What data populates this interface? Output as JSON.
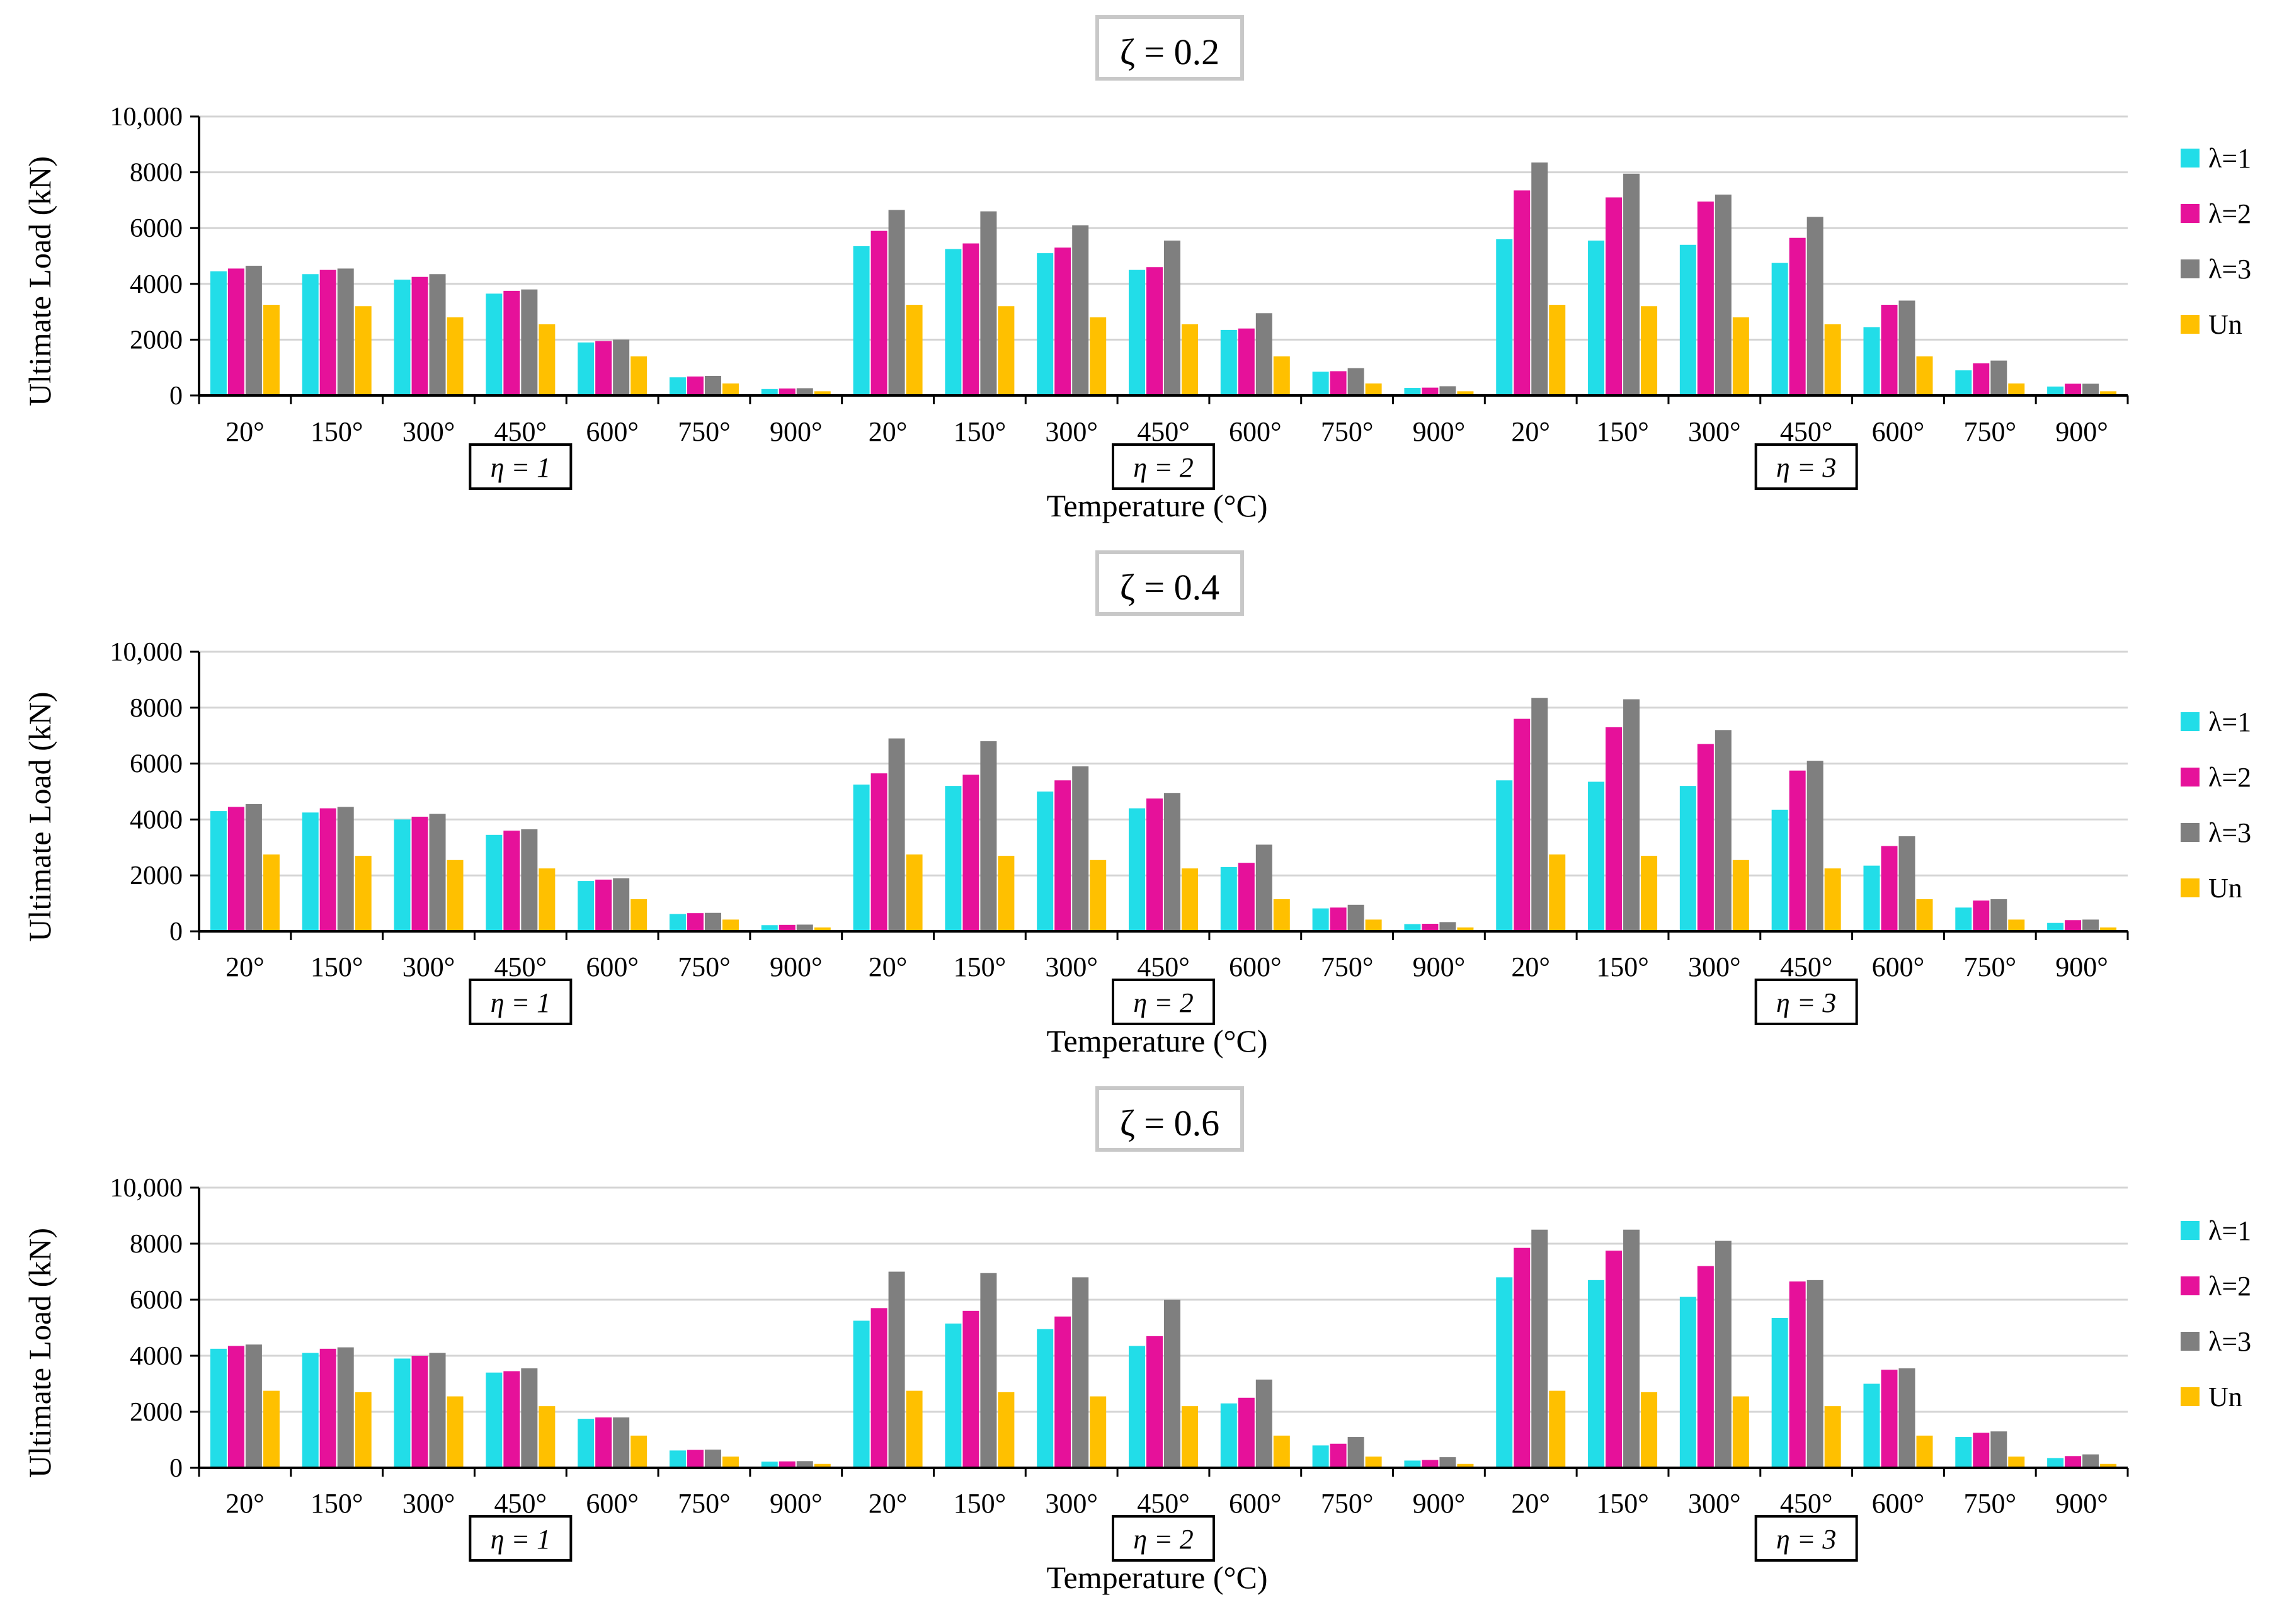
{
  "chart_data": [
    {
      "type": "bar",
      "title": "ζ = 0.2",
      "xlabel": "Temperature (°C)",
      "ylabel": "Ultimate Load (kN)",
      "ylim": [
        0,
        10000
      ],
      "yticks": [
        "0",
        "2000",
        "4000",
        "6000",
        "8000",
        "10,000"
      ],
      "grid": true,
      "legend_position": "right",
      "categories": [
        "20°",
        "150°",
        "300°",
        "450°",
        "600°",
        "750°",
        "900°",
        "20°",
        "150°",
        "300°",
        "450°",
        "600°",
        "750°",
        "900°",
        "20°",
        "150°",
        "300°",
        "450°",
        "600°",
        "750°",
        "900°"
      ],
      "group_labels": [
        "η = 1",
        "η = 2",
        "η = 3"
      ],
      "series": [
        {
          "name": "λ=1",
          "color": "#22DDE8",
          "values": [
            4450,
            4350,
            4150,
            3650,
            1900,
            650,
            230,
            5350,
            5250,
            5100,
            4500,
            2350,
            850,
            270,
            5600,
            5550,
            5400,
            4750,
            2450,
            900,
            320
          ]
        },
        {
          "name": "λ=2",
          "color": "#E6119A",
          "values": [
            4550,
            4500,
            4250,
            3750,
            1950,
            680,
            250,
            5900,
            5450,
            5300,
            4600,
            2400,
            870,
            280,
            7350,
            7100,
            6950,
            5650,
            3250,
            1150,
            420
          ]
        },
        {
          "name": "λ=3",
          "color": "#7F7F7F",
          "values": [
            4650,
            4550,
            4350,
            3800,
            2000,
            700,
            260,
            6650,
            6600,
            6100,
            5550,
            2950,
            980,
            330,
            8350,
            7950,
            7200,
            6400,
            3400,
            1250,
            420
          ]
        },
        {
          "name": "Un",
          "color": "#FFC000",
          "values": [
            3250,
            3200,
            2800,
            2550,
            1400,
            430,
            150,
            3250,
            3200,
            2800,
            2550,
            1400,
            430,
            150,
            3250,
            3200,
            2800,
            2550,
            1400,
            430,
            150
          ]
        }
      ]
    },
    {
      "type": "bar",
      "title": "ζ = 0.4",
      "xlabel": "Temperature (°C)",
      "ylabel": "Ultimate Load (kN)",
      "ylim": [
        0,
        10000
      ],
      "yticks": [
        "0",
        "2000",
        "4000",
        "6000",
        "8000",
        "10,000"
      ],
      "grid": true,
      "legend_position": "right",
      "categories": [
        "20°",
        "150°",
        "300°",
        "450°",
        "600°",
        "750°",
        "900°",
        "20°",
        "150°",
        "300°",
        "450°",
        "600°",
        "750°",
        "900°",
        "20°",
        "150°",
        "300°",
        "450°",
        "600°",
        "750°",
        "900°"
      ],
      "group_labels": [
        "η = 1",
        "η = 2",
        "η = 3"
      ],
      "series": [
        {
          "name": "λ=1",
          "color": "#22DDE8",
          "values": [
            4300,
            4250,
            4000,
            3450,
            1800,
            620,
            220,
            5250,
            5200,
            5000,
            4400,
            2300,
            820,
            260,
            5400,
            5350,
            5200,
            4350,
            2350,
            850,
            300
          ]
        },
        {
          "name": "λ=2",
          "color": "#E6119A",
          "values": [
            4450,
            4400,
            4100,
            3600,
            1850,
            650,
            230,
            5650,
            5600,
            5400,
            4750,
            2450,
            850,
            270,
            7600,
            7300,
            6700,
            5750,
            3050,
            1100,
            400
          ]
        },
        {
          "name": "λ=3",
          "color": "#7F7F7F",
          "values": [
            4550,
            4450,
            4200,
            3650,
            1900,
            660,
            240,
            6900,
            6800,
            5900,
            4950,
            3100,
            950,
            330,
            8350,
            8300,
            7200,
            6100,
            3400,
            1150,
            420
          ]
        },
        {
          "name": "Un",
          "color": "#FFC000",
          "values": [
            2750,
            2700,
            2550,
            2250,
            1150,
            420,
            140,
            2750,
            2700,
            2550,
            2250,
            1150,
            420,
            140,
            2750,
            2700,
            2550,
            2250,
            1150,
            420,
            140
          ]
        }
      ]
    },
    {
      "type": "bar",
      "title": "ζ = 0.6",
      "xlabel": "Temperature (°C)",
      "ylabel": "Ultimate Load (kN)",
      "ylim": [
        0,
        10000
      ],
      "yticks": [
        "0",
        "2000",
        "4000",
        "6000",
        "8000",
        "10,000"
      ],
      "grid": true,
      "legend_position": "right",
      "categories": [
        "20°",
        "150°",
        "300°",
        "450°",
        "600°",
        "750°",
        "900°",
        "20°",
        "150°",
        "300°",
        "450°",
        "600°",
        "750°",
        "900°",
        "20°",
        "150°",
        "300°",
        "450°",
        "600°",
        "750°",
        "900°"
      ],
      "group_labels": [
        "η = 1",
        "η = 2",
        "η = 3"
      ],
      "series": [
        {
          "name": "λ=1",
          "color": "#22DDE8",
          "values": [
            4250,
            4100,
            3900,
            3400,
            1750,
            620,
            220,
            5250,
            5150,
            4950,
            4350,
            2300,
            800,
            260,
            6800,
            6700,
            6100,
            5350,
            3000,
            1100,
            350
          ]
        },
        {
          "name": "λ=2",
          "color": "#E6119A",
          "values": [
            4350,
            4250,
            4000,
            3450,
            1800,
            640,
            230,
            5700,
            5600,
            5400,
            4700,
            2500,
            860,
            280,
            7850,
            7750,
            7200,
            6650,
            3500,
            1250,
            420
          ]
        },
        {
          "name": "λ=3",
          "color": "#7F7F7F",
          "values": [
            4400,
            4300,
            4100,
            3550,
            1800,
            650,
            240,
            7000,
            6950,
            6800,
            6000,
            3150,
            1100,
            380,
            8500,
            8500,
            8100,
            6700,
            3550,
            1300,
            480
          ]
        },
        {
          "name": "Un",
          "color": "#FFC000",
          "values": [
            2750,
            2700,
            2550,
            2200,
            1150,
            400,
            140,
            2750,
            2700,
            2550,
            2200,
            1150,
            400,
            140,
            2750,
            2700,
            2550,
            2200,
            1150,
            400,
            140
          ]
        }
      ]
    }
  ]
}
